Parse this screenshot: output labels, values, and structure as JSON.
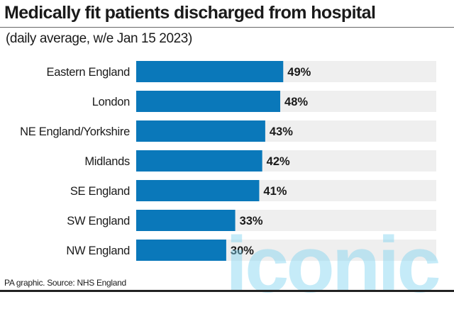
{
  "title": "Medically fit patients discharged from hospital",
  "subtitle": "(daily average, w/e Jan 15 2023)",
  "footer": "PA graphic. Source: NHS England",
  "watermark": "iconic",
  "colors": {
    "bar": "#0a78ba",
    "track": "#efefef",
    "text": "#1a1a1a"
  },
  "chart_data": {
    "type": "bar",
    "orientation": "horizontal",
    "title": "Medically fit patients discharged from hospital",
    "subtitle": "(daily average, w/e Jan 15 2023)",
    "categories": [
      "Eastern England",
      "London",
      "NE England/Yorkshire",
      "Midlands",
      "SE England",
      "SW England",
      "NW England"
    ],
    "values": [
      49,
      48,
      43,
      42,
      41,
      33,
      30
    ],
    "value_labels": [
      "49%",
      "48%",
      "43%",
      "42%",
      "41%",
      "33%",
      "30%"
    ],
    "xlim": [
      0,
      100
    ],
    "unit": "%",
    "grid": false,
    "legend": "none"
  }
}
